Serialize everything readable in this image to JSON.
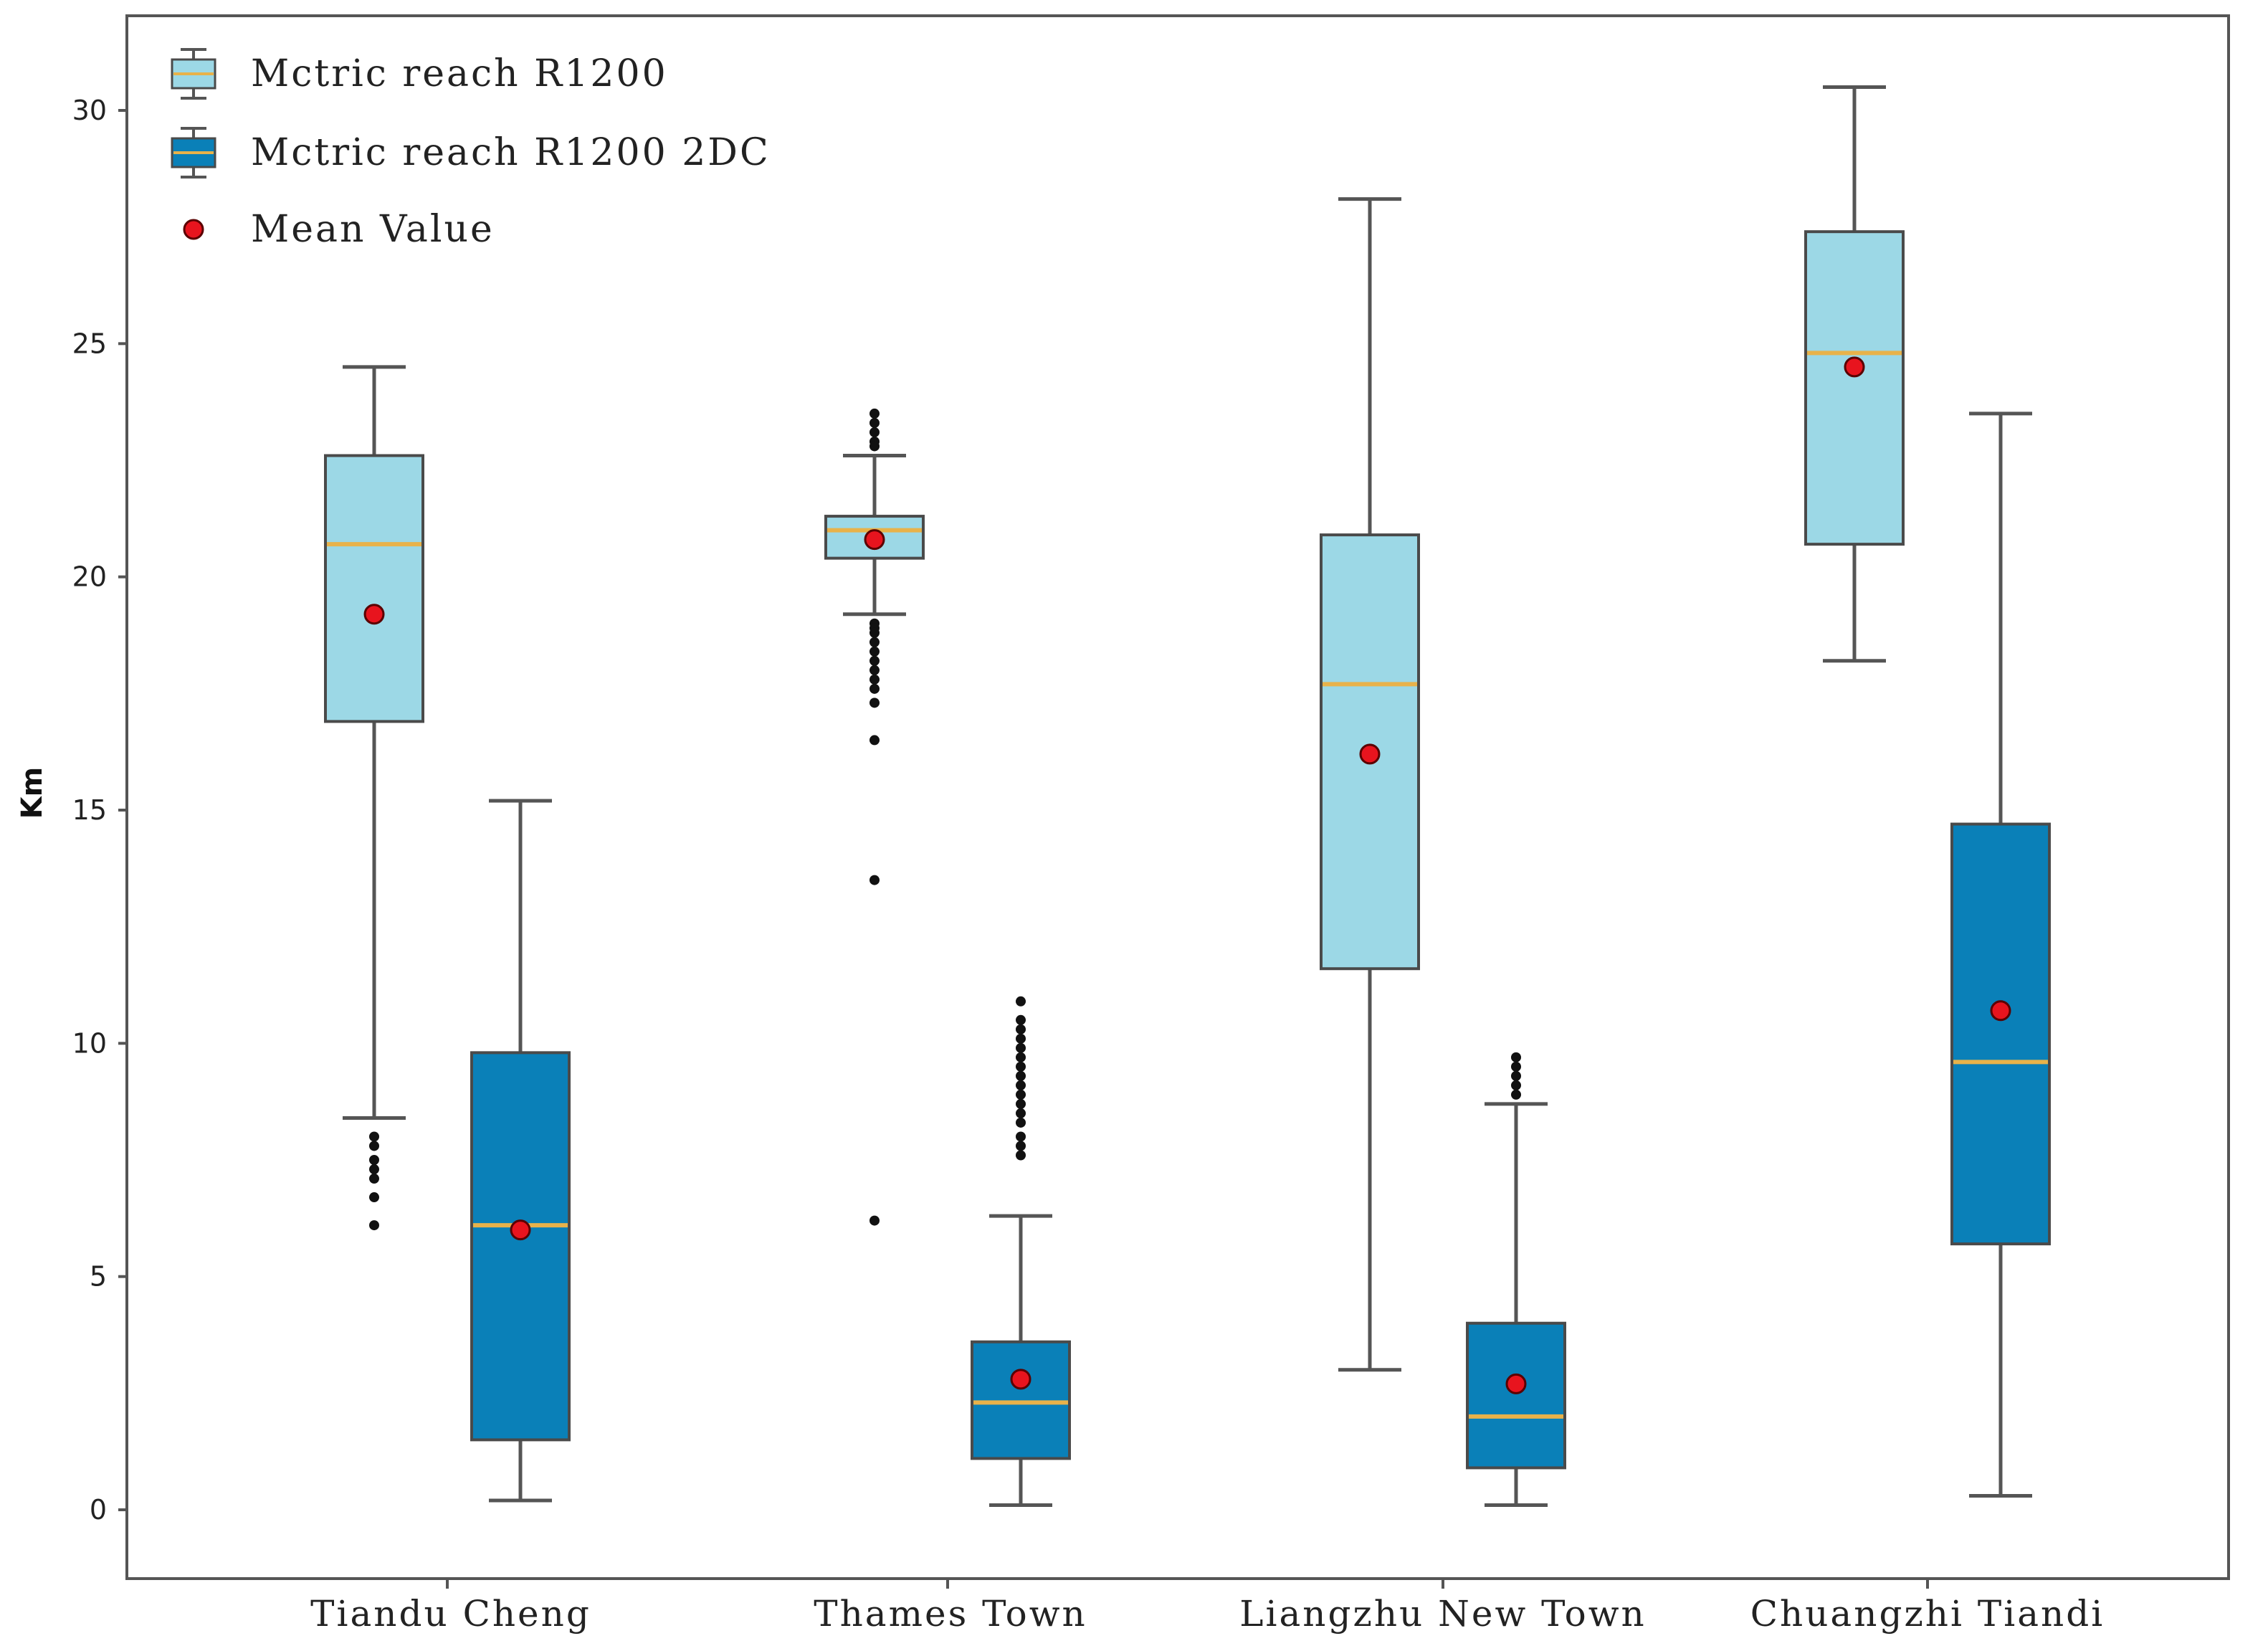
{
  "chart_data": {
    "type": "box",
    "title": "",
    "xlabel": "",
    "ylabel": "Km",
    "ylim": [
      -1.2,
      32
    ],
    "yticks": [
      0,
      5,
      10,
      15,
      20,
      25,
      30
    ],
    "categories": [
      "Tiandu Cheng",
      "Thames Town",
      "Liangzhu New Town",
      "Chuangzhi Tiandi"
    ],
    "series": [
      {
        "name": "Mctric reach R1200",
        "color": "#9cd8e6",
        "boxes": [
          {
            "category": "Tiandu Cheng",
            "whisker_low": 8.4,
            "q1": 16.9,
            "median": 20.7,
            "q3": 22.6,
            "whisker_high": 24.5,
            "mean": 19.2,
            "outliers": [
              8.0,
              7.8,
              7.5,
              7.3,
              7.1,
              6.7,
              6.1
            ]
          },
          {
            "category": "Thames Town",
            "whisker_low": 19.2,
            "q1": 20.4,
            "median": 21.0,
            "q3": 21.3,
            "whisker_high": 22.6,
            "mean": 20.8,
            "outliers": [
              23.5,
              23.3,
              23.1,
              22.9,
              22.8,
              19.0,
              18.9,
              18.8,
              18.6,
              18.4,
              18.2,
              18.0,
              17.8,
              17.6,
              17.3,
              16.5,
              13.5,
              6.2
            ]
          },
          {
            "category": "Liangzhu New Town",
            "whisker_low": 3.0,
            "q1": 11.6,
            "median": 17.7,
            "q3": 20.9,
            "whisker_high": 28.1,
            "mean": 16.2,
            "outliers": []
          },
          {
            "category": "Chuangzhi Tiandi",
            "whisker_low": 18.2,
            "q1": 20.7,
            "median": 24.8,
            "q3": 27.4,
            "whisker_high": 30.5,
            "mean": 24.5,
            "outliers": []
          }
        ]
      },
      {
        "name": "Mctric reach R1200 2DC",
        "color": "#0a80b8",
        "boxes": [
          {
            "category": "Tiandu Cheng",
            "whisker_low": 0.2,
            "q1": 1.5,
            "median": 6.1,
            "q3": 9.8,
            "whisker_high": 15.2,
            "mean": 6.0,
            "outliers": []
          },
          {
            "category": "Thames Town",
            "whisker_low": 0.1,
            "q1": 1.1,
            "median": 2.3,
            "q3": 3.6,
            "whisker_high": 6.3,
            "mean": 2.8,
            "outliers": [
              10.9,
              10.5,
              10.3,
              10.1,
              9.9,
              9.7,
              9.5,
              9.3,
              9.1,
              8.9,
              8.7,
              8.5,
              8.3,
              8.0,
              7.8,
              7.6
            ]
          },
          {
            "category": "Liangzhu New Town",
            "whisker_low": 0.1,
            "q1": 0.9,
            "median": 2.0,
            "q3": 4.0,
            "whisker_high": 8.7,
            "mean": 2.7,
            "outliers": [
              9.7,
              9.5,
              9.3,
              9.1,
              8.9
            ]
          },
          {
            "category": "Chuangzhi Tiandi",
            "whisker_low": 0.3,
            "q1": 5.7,
            "median": 9.6,
            "q3": 14.7,
            "whisker_high": 23.5,
            "mean": 10.7,
            "outliers": []
          }
        ]
      }
    ],
    "mean_marker": {
      "label": "Mean Value",
      "color": "#e8141e"
    },
    "median_color": "#e8b24a",
    "legend_position": "top-left",
    "grid": false
  }
}
